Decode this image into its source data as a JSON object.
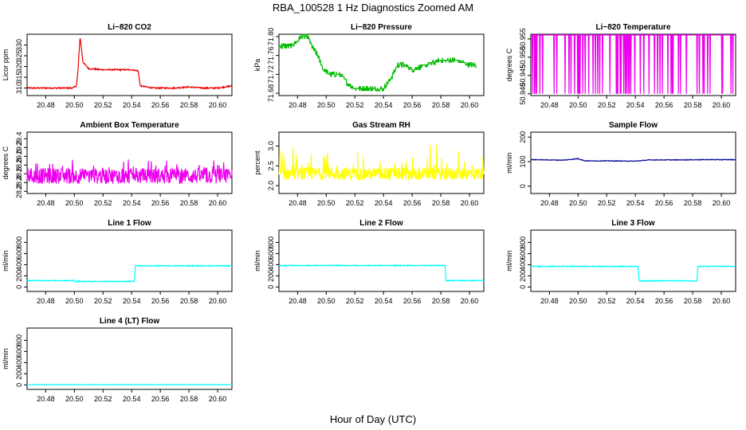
{
  "figure": {
    "title": "RBA_100528  1 Hz Diagnostics Zoomed AM",
    "xlabel": "Hour of Day (UTC)"
  },
  "chart_data": [
    {
      "type": "line",
      "title": "Li−820 CO2",
      "ylabel": "Licor ppm",
      "color": "#ee0000",
      "xlim": [
        20.467,
        20.61
      ],
      "ylim": [
        306.5,
        335
      ],
      "xticks": [
        "20.48",
        "20.50",
        "20.52",
        "20.54",
        "20.56",
        "20.58",
        "20.60"
      ],
      "yticks": [
        "310",
        "315",
        "320",
        "325",
        "330"
      ],
      "yticks_at": [
        310,
        315,
        320,
        325,
        330
      ],
      "series": [
        {
          "name": "CO2",
          "x": [
            20.467,
            20.4985,
            20.5015,
            20.5025,
            20.504,
            20.506,
            20.51,
            20.52,
            20.53,
            20.54,
            20.5445,
            20.546,
            20.555,
            20.57,
            20.58,
            20.59,
            20.6,
            20.605,
            20.61
          ],
          "values": [
            310,
            310,
            311,
            318,
            334,
            322,
            319,
            318.5,
            318.5,
            318.5,
            318,
            311,
            310,
            310,
            310.5,
            310,
            310,
            310.5,
            311
          ],
          "noise": 0.3
        }
      ]
    },
    {
      "type": "line",
      "title": "Li−820 Pressure",
      "ylabel": "kPa",
      "color": "#00bb00",
      "xlim": [
        20.467,
        20.61
      ],
      "ylim": [
        71.675,
        71.805
      ],
      "xticks": [
        "20.48",
        "20.50",
        "20.52",
        "20.54",
        "20.56",
        "20.58",
        "20.60"
      ],
      "yticks": [
        "71.68",
        "71.72",
        "71.76",
        "71.80"
      ],
      "yticks_at": [
        71.68,
        71.72,
        71.76,
        71.8
      ],
      "series": [
        {
          "name": "Pressure",
          "x": [
            20.467,
            20.476,
            20.48,
            20.482,
            20.487,
            20.49,
            20.494,
            20.498,
            20.503,
            20.51,
            20.515,
            20.52,
            20.53,
            20.54,
            20.545,
            20.55,
            20.555,
            20.56,
            20.57,
            20.58,
            20.59,
            20.6,
            20.605
          ],
          "values": [
            71.78,
            71.78,
            71.79,
            71.8,
            71.8,
            71.78,
            71.76,
            71.73,
            71.72,
            71.72,
            71.7,
            71.69,
            71.69,
            71.69,
            71.71,
            71.74,
            71.74,
            71.73,
            71.74,
            71.75,
            71.75,
            71.74,
            71.74
          ],
          "noise": 0.005,
          "step": 0.005
        }
      ]
    },
    {
      "type": "line",
      "title": "Li−820 Temperature",
      "ylabel": "degrees C",
      "color": "#ee00ee",
      "xlim": [
        20.467,
        20.61
      ],
      "ylim": [
        50.9395,
        50.9563
      ],
      "xticks": [
        "20.48",
        "20.50",
        "20.52",
        "20.54",
        "20.56",
        "20.58",
        "20.60"
      ],
      "yticks": [
        "50.940",
        "50.945",
        "50.950",
        "50.955"
      ],
      "yticks_at": [
        50.94,
        50.945,
        50.95,
        50.955
      ],
      "series": [
        {
          "name": "Temperature",
          "x": [
            20.467,
            20.61
          ],
          "values": [
            50.9561,
            50.9561
          ],
          "spike_to": 50.94,
          "spike_density": 0.12
        }
      ]
    },
    {
      "type": "line",
      "title": "Ambient Box Temperature",
      "ylabel": "degrees C",
      "color": "#ee00ee",
      "xlim": [
        20.467,
        20.61
      ],
      "ylim": [
        28.15,
        29.55
      ],
      "xticks": [
        "20.48",
        "20.50",
        "20.52",
        "20.54",
        "20.56",
        "20.58",
        "20.60"
      ],
      "yticks": [
        "28.2",
        "28.4",
        "28.6",
        "28.8",
        "29.0",
        "29.2",
        "29.4"
      ],
      "yticks_at": [
        28.2,
        28.4,
        28.6,
        28.8,
        29.0,
        29.2,
        29.4
      ],
      "series": [
        {
          "name": "Box T",
          "x": [
            20.467,
            20.61
          ],
          "values": [
            28.55,
            28.55
          ],
          "noise": 0.18,
          "spiky": 0.35
        }
      ]
    },
    {
      "type": "line",
      "title": "Gas Stream RH",
      "ylabel": "percent",
      "color": "#ffff00",
      "xlim": [
        20.467,
        20.61
      ],
      "ylim": [
        1.8,
        3.35
      ],
      "xticks": [
        "20.48",
        "20.50",
        "20.52",
        "20.54",
        "20.56",
        "20.58",
        "20.60"
      ],
      "yticks": [
        "2.0",
        "2.5",
        "3.0"
      ],
      "yticks_at": [
        2.0,
        2.5,
        3.0
      ],
      "series": [
        {
          "name": "RH",
          "x": [
            20.467,
            20.61
          ],
          "values": [
            2.3,
            2.3
          ],
          "noise": 0.16,
          "spiky": 0.75
        }
      ]
    },
    {
      "type": "line",
      "title": "Sample Flow",
      "ylabel": "ml/min",
      "color": "#000099",
      "xlim": [
        20.467,
        20.61
      ],
      "ylim": [
        -30,
        220
      ],
      "xticks": [
        "20.48",
        "20.50",
        "20.52",
        "20.54",
        "20.56",
        "20.58",
        "20.60"
      ],
      "yticks": [
        "0",
        "100",
        "200"
      ],
      "yticks_at": [
        0,
        100,
        200
      ],
      "series": [
        {
          "name": "Sample Flow",
          "x": [
            20.467,
            20.49,
            20.5,
            20.505,
            20.52,
            20.54,
            20.55,
            20.57,
            20.59,
            20.61
          ],
          "values": [
            108,
            106,
            112,
            103,
            103,
            102,
            107,
            107,
            108,
            108
          ],
          "noise": 1.2
        }
      ]
    },
    {
      "type": "line",
      "title": "Line 1 Flow",
      "ylabel": "ml/min",
      "color": "#00ffff",
      "xlim": [
        20.467,
        20.61
      ],
      "ylim": [
        -80,
        1020
      ],
      "xticks": [
        "20.48",
        "20.50",
        "20.52",
        "20.54",
        "20.56",
        "20.58",
        "20.60"
      ],
      "yticks": [
        "0",
        "200",
        "400",
        "600",
        "800"
      ],
      "yticks_at": [
        0,
        200,
        400,
        600,
        800
      ],
      "series": [
        {
          "name": "Line 1",
          "x": [
            20.467,
            20.5,
            20.5001,
            20.542,
            20.5425,
            20.61
          ],
          "values": [
            115,
            115,
            100,
            100,
            380,
            380
          ],
          "noise": 8
        }
      ]
    },
    {
      "type": "line",
      "title": "Line 2 Flow",
      "ylabel": "ml/min",
      "color": "#00ffff",
      "xlim": [
        20.467,
        20.61
      ],
      "ylim": [
        -80,
        1020
      ],
      "xticks": [
        "20.48",
        "20.50",
        "20.52",
        "20.54",
        "20.56",
        "20.58",
        "20.60"
      ],
      "yticks": [
        "0",
        "200",
        "400",
        "600",
        "800"
      ],
      "yticks_at": [
        0,
        200,
        400,
        600,
        800
      ],
      "series": [
        {
          "name": "Line 2",
          "x": [
            20.467,
            20.583,
            20.5835,
            20.61
          ],
          "values": [
            385,
            385,
            115,
            115
          ],
          "noise": 8
        }
      ]
    },
    {
      "type": "line",
      "title": "Line 3 Flow",
      "ylabel": "ml/min",
      "color": "#00ffff",
      "xlim": [
        20.467,
        20.61
      ],
      "ylim": [
        -80,
        1020
      ],
      "xticks": [
        "20.48",
        "20.50",
        "20.52",
        "20.54",
        "20.56",
        "20.58",
        "20.60"
      ],
      "yticks": [
        "0",
        "200",
        "400",
        "600",
        "800"
      ],
      "yticks_at": [
        0,
        200,
        400,
        600,
        800
      ],
      "series": [
        {
          "name": "Line 3",
          "x": [
            20.467,
            20.542,
            20.5425,
            20.583,
            20.5835,
            20.61
          ],
          "values": [
            370,
            370,
            110,
            110,
            370,
            370
          ],
          "noise": 8
        }
      ]
    },
    {
      "type": "line",
      "title": "Line 4 (LT) Flow",
      "ylabel": "ml/min",
      "color": "#00ffff",
      "xlim": [
        20.467,
        20.61
      ],
      "ylim": [
        -80,
        1020
      ],
      "xticks": [
        "20.48",
        "20.50",
        "20.52",
        "20.54",
        "20.56",
        "20.58",
        "20.60"
      ],
      "yticks": [
        "0",
        "200",
        "400",
        "600",
        "800"
      ],
      "yticks_at": [
        0,
        200,
        400,
        600,
        800
      ],
      "series": [
        {
          "name": "Line 4",
          "x": [
            20.467,
            20.61
          ],
          "values": [
            5,
            5
          ],
          "noise": 2
        }
      ]
    }
  ]
}
